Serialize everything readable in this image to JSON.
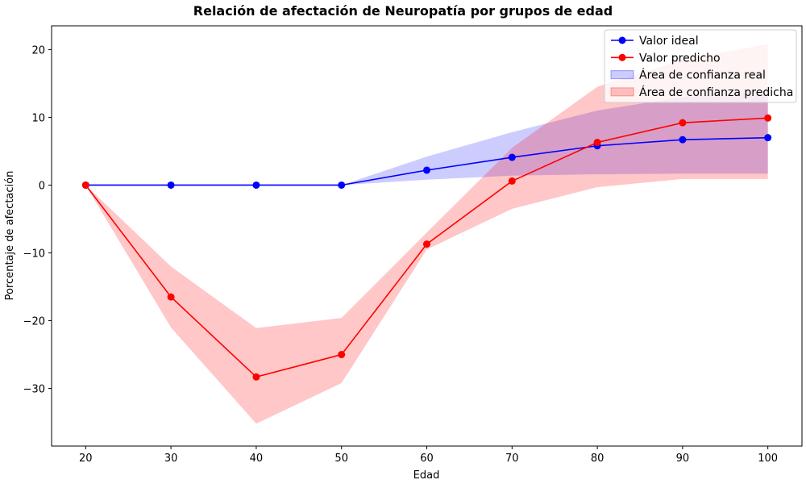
{
  "chart_data": {
    "type": "line",
    "title": "Relación de afectación de Neuropatía por grupos de edad",
    "xlabel": "Edad",
    "ylabel": "Porcentaje de afectación",
    "x": [
      20,
      30,
      40,
      50,
      60,
      70,
      80,
      90,
      100
    ],
    "xlim": [
      16,
      104
    ],
    "ylim": [
      -38.5,
      23.5
    ],
    "xticks": [
      20,
      30,
      40,
      50,
      60,
      70,
      80,
      90,
      100
    ],
    "yticks": [
      -30,
      -20,
      -10,
      0,
      10,
      20
    ],
    "grid": false,
    "legend_position": "top-right",
    "series": [
      {
        "name": "Valor ideal",
        "color": "#0000ff",
        "values": [
          0,
          0,
          0,
          0,
          2.2,
          4.1,
          5.8,
          6.7,
          7.0
        ]
      },
      {
        "name": "Valor predicho",
        "color": "#ff0000",
        "values": [
          0,
          -16.5,
          -28.3,
          -25.0,
          -8.7,
          0.6,
          6.3,
          9.2,
          9.9
        ]
      }
    ],
    "bands": [
      {
        "name": "Área de confianza real",
        "color": "#0000ff",
        "opacity": 0.2,
        "lower": [
          0,
          0,
          0,
          0,
          0.8,
          1.4,
          1.6,
          1.7,
          1.7
        ],
        "upper": [
          0,
          0,
          0,
          0,
          4.2,
          7.8,
          11.0,
          13.0,
          14.0
        ]
      },
      {
        "name": "Área de confianza predicha",
        "color": "#ff0000",
        "opacity": 0.22,
        "lower": [
          0,
          -21.0,
          -35.2,
          -29.2,
          -9.5,
          -3.5,
          -0.3,
          0.9,
          0.9
        ],
        "upper": [
          0,
          -12.0,
          -21.1,
          -19.6,
          -7.0,
          5.5,
          14.5,
          18.5,
          20.8
        ]
      }
    ]
  }
}
